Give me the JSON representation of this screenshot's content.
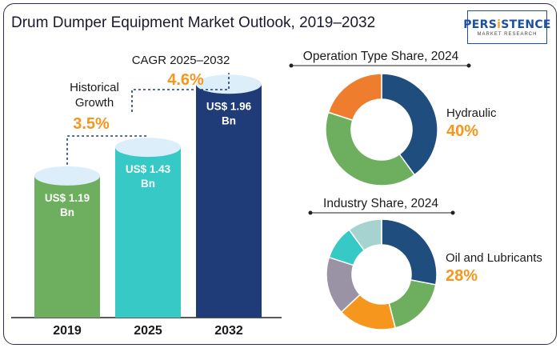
{
  "header": {
    "title": "Drum Dumper Equipment Market Outlook, 2019–2032",
    "logo_text_1": "PERS",
    "logo_text_accent": "i",
    "logo_text_2": "STENCE",
    "logo_sub": "MARKET RESEARCH"
  },
  "chart_data": [
    {
      "type": "bar",
      "categories": [
        "2019",
        "2025",
        "2032"
      ],
      "values": [
        1.19,
        1.43,
        1.96
      ],
      "value_labels": [
        "US$ 1.19 Bn",
        "US$ 1.43 Bn",
        "US$ 1.96 Bn"
      ],
      "colors": [
        "#6daf5f",
        "#36c9c6",
        "#1f3c78"
      ],
      "annotations": [
        {
          "label": "Historical Growth",
          "value": "3.5%"
        },
        {
          "label": "CAGR 2025–2032",
          "value": "4.6%"
        }
      ]
    },
    {
      "type": "pie",
      "title": "Operation Type Share, 2024",
      "highlight_label": "Hydraulic",
      "highlight_value": "40%",
      "values": [
        40,
        40,
        20
      ],
      "colors": [
        "#1f4e7e",
        "#6daf5f",
        "#ef7d2e"
      ]
    },
    {
      "type": "pie",
      "title": "Industry Share, 2024",
      "highlight_label": "Oil and Lubricants",
      "highlight_value": "28%",
      "values": [
        28,
        18,
        17,
        17,
        10,
        10
      ],
      "colors": [
        "#1f4e7e",
        "#6daf5f",
        "#f6961d",
        "#9a93a6",
        "#36c9c6",
        "#a6d3cf"
      ]
    }
  ]
}
